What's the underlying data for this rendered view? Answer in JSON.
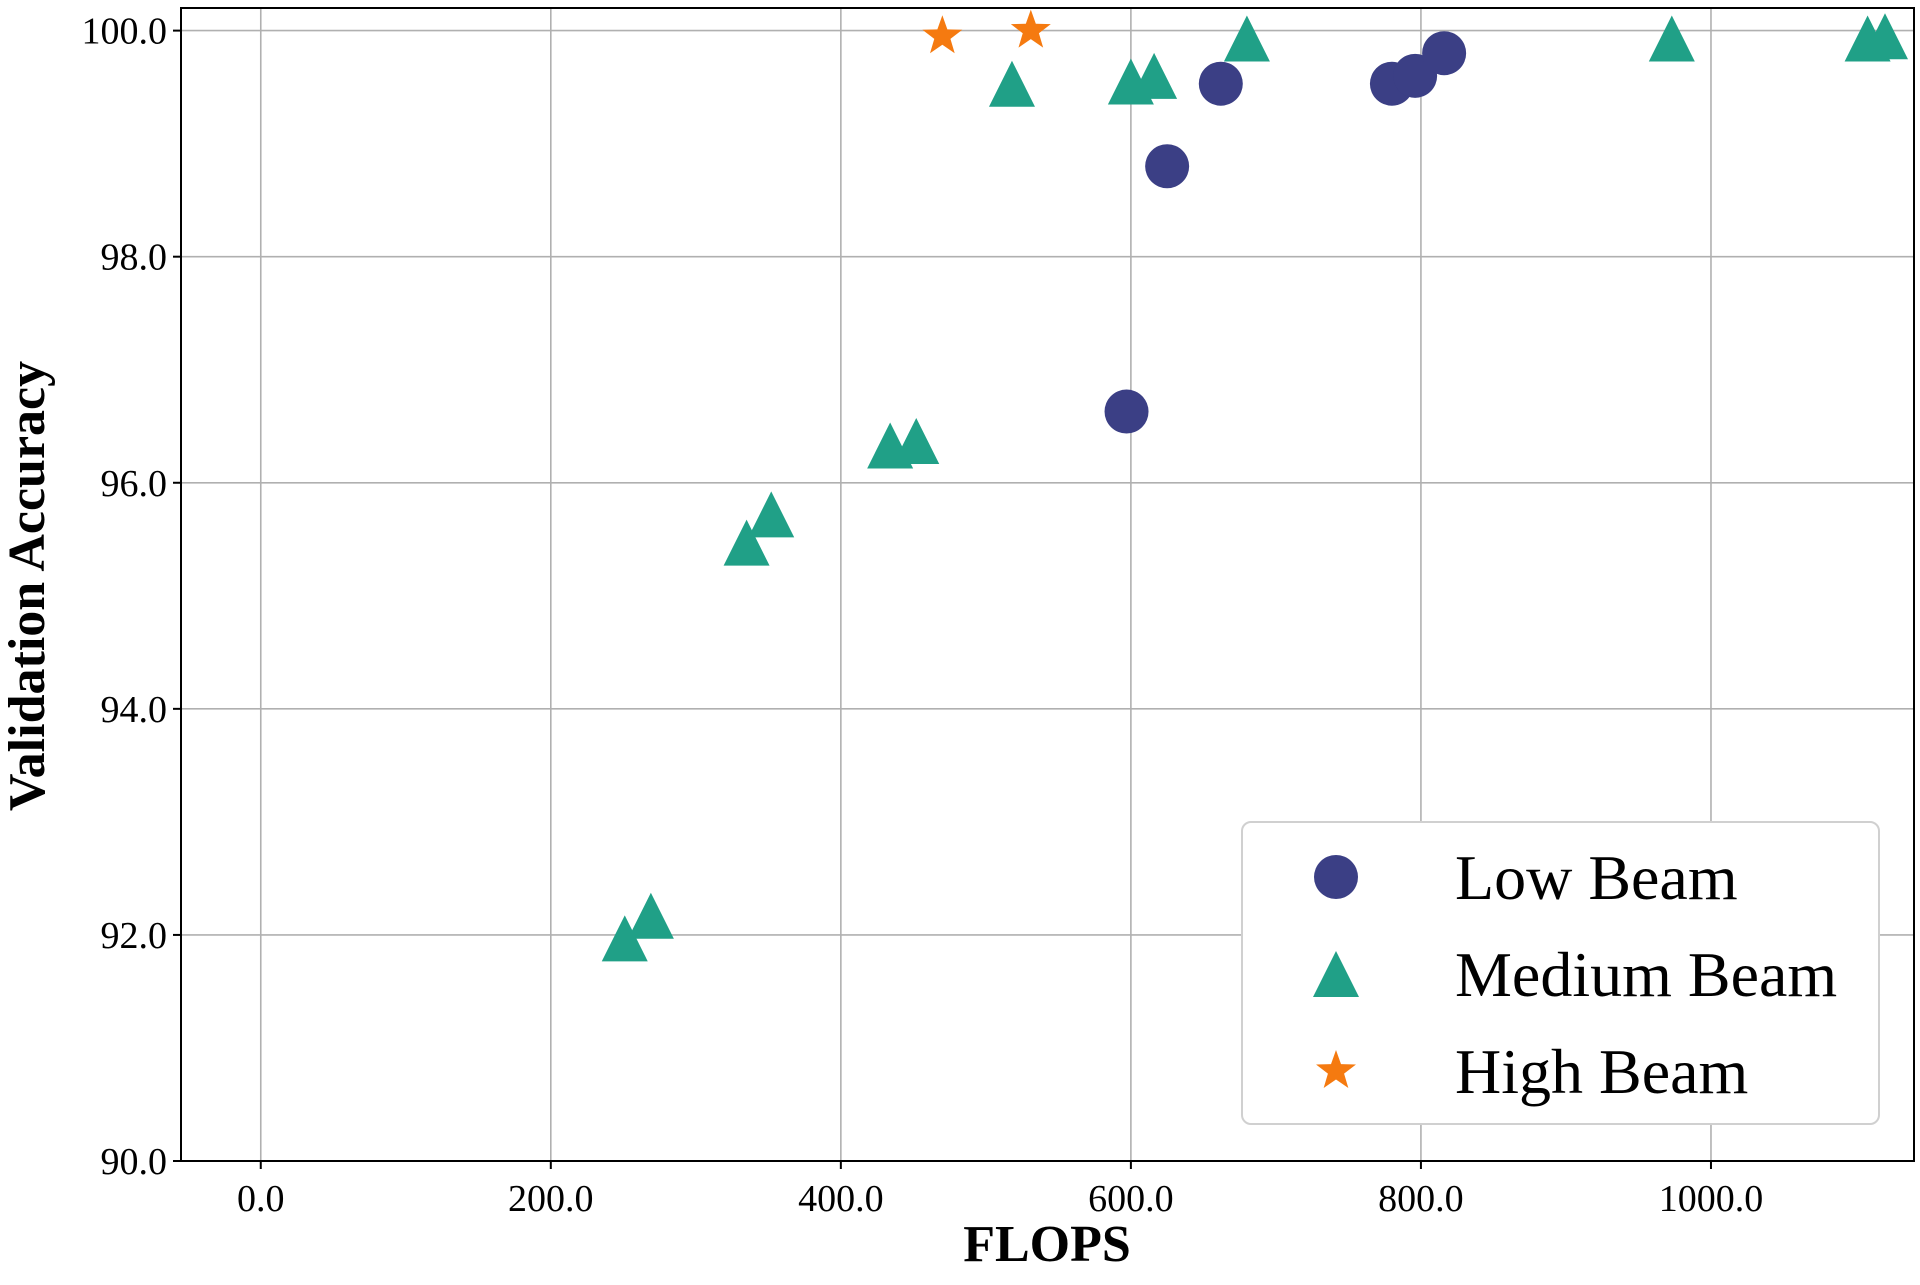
{
  "chart_data": {
    "type": "scatter",
    "title": "",
    "xlabel": "FLOPS",
    "ylabel": "Validation Accuracy",
    "xlim": [
      -55,
      1140
    ],
    "ylim": [
      90.0,
      100.2
    ],
    "xticks": [
      0,
      200,
      400,
      600,
      800,
      1000
    ],
    "yticks": [
      90,
      92,
      94,
      96,
      98,
      100
    ],
    "tick_format": "one-decimal",
    "grid": true,
    "legend_position": "lower-right",
    "series": [
      {
        "name": "Low Beam",
        "marker": "circle",
        "color": "#3b3f85",
        "points": [
          [
            597,
            96.63
          ],
          [
            625,
            98.8
          ],
          [
            662,
            99.53
          ],
          [
            780,
            99.53
          ],
          [
            796,
            99.6
          ],
          [
            816,
            99.8
          ]
        ]
      },
      {
        "name": "Medium Beam",
        "marker": "triangle",
        "color": "#20a087",
        "points": [
          [
            251,
            91.97
          ],
          [
            269,
            92.17
          ],
          [
            335,
            95.47
          ],
          [
            352,
            95.72
          ],
          [
            434,
            96.33
          ],
          [
            452,
            96.37
          ],
          [
            518,
            99.53
          ],
          [
            600,
            99.55
          ],
          [
            616,
            99.6
          ],
          [
            680,
            99.93
          ],
          [
            973,
            99.93
          ],
          [
            1108,
            99.93
          ],
          [
            1120,
            99.95
          ]
        ]
      },
      {
        "name": "High Beam",
        "marker": "star",
        "color": "#f57a10",
        "points": [
          [
            470,
            99.95
          ],
          [
            531,
            100.0
          ]
        ]
      }
    ]
  }
}
